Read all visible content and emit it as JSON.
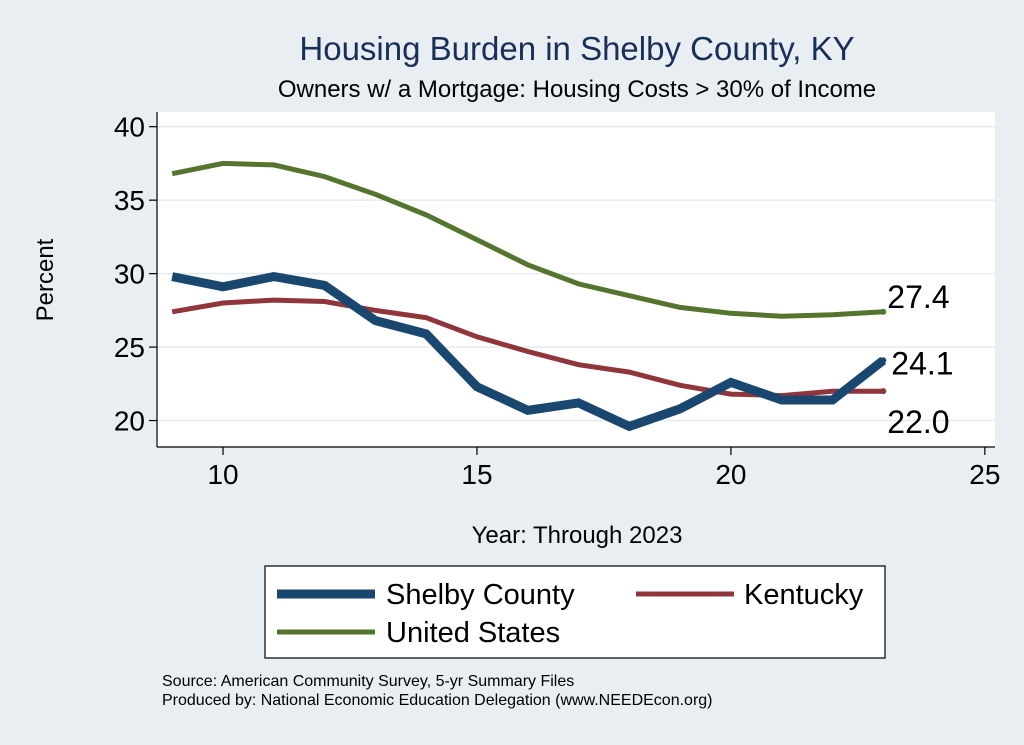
{
  "chart_data": {
    "type": "line",
    "title": "Housing Burden in Shelby County, KY",
    "subtitle": "Owners w/ a Mortgage: Housing Costs > 30% of Income",
    "xlabel": "Year: Through 2023",
    "ylabel": "Percent",
    "xlim": [
      8.7,
      25.2
    ],
    "ylim": [
      18.2,
      41
    ],
    "xticks": [
      10,
      15,
      20,
      25
    ],
    "yticks": [
      20,
      25,
      30,
      35,
      40
    ],
    "grid": true,
    "legend_position": "bottom",
    "x": [
      9,
      10,
      11,
      12,
      13,
      14,
      15,
      16,
      17,
      18,
      19,
      20,
      21,
      22,
      23
    ],
    "series": [
      {
        "name": "Shelby County",
        "color": "#1a476f",
        "values": [
          29.8,
          29.1,
          29.8,
          29.2,
          26.8,
          25.9,
          22.3,
          20.7,
          21.2,
          19.6,
          20.8,
          22.6,
          21.4,
          21.4,
          24.1
        ],
        "end_label": "24.1"
      },
      {
        "name": "Kentucky",
        "color": "#90353b",
        "values": [
          27.4,
          28.0,
          28.2,
          28.1,
          27.5,
          27.0,
          25.7,
          24.7,
          23.8,
          23.3,
          22.4,
          21.8,
          21.7,
          22.0,
          22.0
        ],
        "end_label": "22.0"
      },
      {
        "name": "United States",
        "color": "#55752f",
        "values": [
          36.8,
          37.5,
          37.4,
          36.6,
          35.4,
          34.0,
          32.3,
          30.6,
          29.3,
          28.5,
          27.7,
          27.3,
          27.1,
          27.2,
          27.4
        ],
        "end_label": "27.4"
      }
    ]
  },
  "footer": {
    "source": "Source: American Community Survey, 5-yr Summary Files",
    "produced_by": "Produced by: National Economic Education Delegation (www.NEEDEcon.org)"
  }
}
